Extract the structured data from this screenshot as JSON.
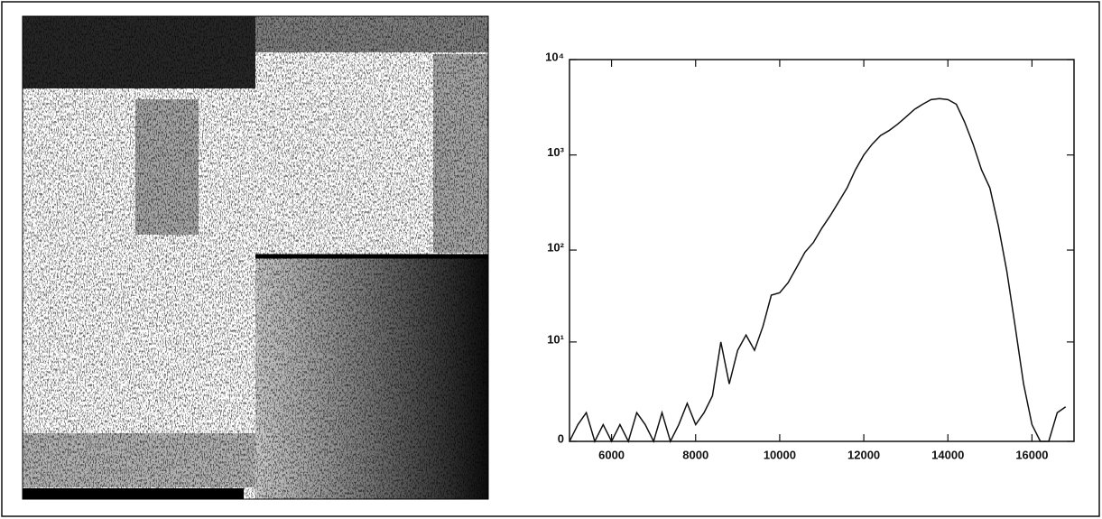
{
  "chart_data": {
    "type": "line",
    "color": "#111111",
    "yscale": "symlog",
    "xlim": [
      5000,
      17000
    ],
    "xticks": [
      6000,
      8000,
      10000,
      12000,
      14000,
      16000
    ],
    "ylim": [
      0,
      10000
    ],
    "yticks": [
      0,
      {
        "value": 10,
        "label": "10¹"
      },
      {
        "value": 100,
        "label": "10²"
      },
      {
        "value": 1000,
        "label": "10³"
      },
      {
        "value": 10000,
        "label": "10⁴"
      }
    ],
    "x": [
      5000,
      5200,
      5400,
      5600,
      5800,
      6000,
      6200,
      6400,
      6600,
      6800,
      7000,
      7200,
      7400,
      7600,
      7800,
      8000,
      8200,
      8400,
      8600,
      8800,
      9000,
      9200,
      9400,
      9600,
      9800,
      10000,
      10200,
      10400,
      10600,
      10800,
      11000,
      11200,
      11400,
      11600,
      11800,
      12000,
      12200,
      12400,
      12600,
      12800,
      13000,
      13200,
      13400,
      13600,
      13800,
      14000,
      14200,
      14400,
      14600,
      14800,
      15000,
      15200,
      15400,
      15600,
      15800,
      16000,
      16200,
      16400,
      16600,
      16800
    ],
    "values": [
      0,
      0.5,
      1,
      0,
      0.5,
      0,
      0.5,
      0,
      1,
      0.5,
      0,
      1,
      0,
      0.5,
      1.5,
      0.5,
      1,
      2,
      10,
      3,
      8,
      12,
      8,
      15,
      33,
      35,
      45,
      65,
      95,
      120,
      170,
      230,
      320,
      450,
      700,
      1000,
      1300,
      1600,
      1800,
      2100,
      2500,
      3000,
      3400,
      3800,
      3900,
      3800,
      3400,
      2200,
      1300,
      700,
      450,
      180,
      60,
      15,
      3,
      0.5,
      0,
      0,
      1,
      1.3
    ]
  }
}
